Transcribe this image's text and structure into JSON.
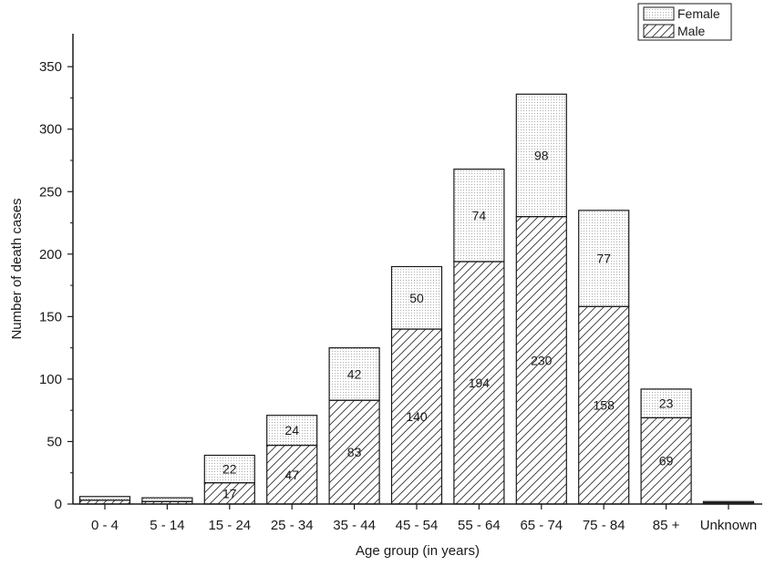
{
  "chart_data": {
    "type": "bar",
    "stacked": true,
    "title": "",
    "xlabel": "Age group (in years)",
    "ylabel": "Number of death cases",
    "categories": [
      "0 - 4",
      "5 - 14",
      "15 - 24",
      "25 - 34",
      "35 - 44",
      "45 - 54",
      "55 - 64",
      "65 - 74",
      "75 - 84",
      "85 +",
      "Unknown"
    ],
    "series": [
      {
        "name": "Male",
        "pattern": "diagonal-hatch",
        "values": [
          3,
          2,
          17,
          47,
          83,
          140,
          194,
          230,
          158,
          69,
          1
        ],
        "labels": [
          "",
          "",
          "17",
          "47",
          "83",
          "140",
          "194",
          "230",
          "158",
          "69",
          ""
        ]
      },
      {
        "name": "Female",
        "pattern": "dotted",
        "values": [
          3,
          3,
          22,
          24,
          42,
          50,
          74,
          98,
          77,
          23,
          1
        ],
        "labels": [
          "",
          "",
          "22",
          "24",
          "42",
          "50",
          "74",
          "98",
          "77",
          "23",
          ""
        ]
      }
    ],
    "ylim": [
      0,
      380
    ],
    "yticks": [
      0,
      50,
      100,
      150,
      200,
      250,
      300,
      350
    ],
    "grid": false,
    "legend_position": "top-right",
    "legend_order": [
      "Female",
      "Male"
    ],
    "colors": {
      "outline": "#1a1a1a",
      "hatch": "#333333",
      "dots": "#9a9a9a",
      "background": "#ffffff"
    }
  }
}
